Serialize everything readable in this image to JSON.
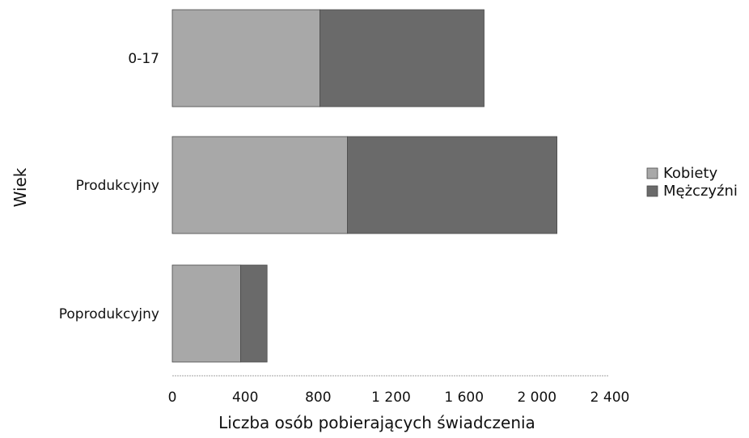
{
  "chart_data": {
    "type": "bar",
    "orientation": "horizontal",
    "stacked": true,
    "categories": [
      "0-17",
      "Produkcyjny",
      "Poprodukcyjny"
    ],
    "series": [
      {
        "name": "Kobiety",
        "values": [
          810,
          960,
          375
        ],
        "color": "#a8a8a8"
      },
      {
        "name": "Mężczyźni",
        "values": [
          900,
          1150,
          145
        ],
        "color": "#6a6a6a"
      }
    ],
    "xlabel": "Liczba osób pobierających świadczenia",
    "ylabel": "Wiek",
    "xlim": [
      0,
      2400
    ],
    "xticks": [
      0,
      400,
      800,
      1200,
      1600,
      2000,
      2400
    ],
    "xtick_labels": [
      "0",
      "400",
      "800",
      "1 200",
      "1 600",
      "2 000",
      "2 400"
    ],
    "grid": false,
    "legend": {
      "position": "right",
      "entries": [
        "Kobiety",
        "Mężczyźni"
      ]
    }
  }
}
